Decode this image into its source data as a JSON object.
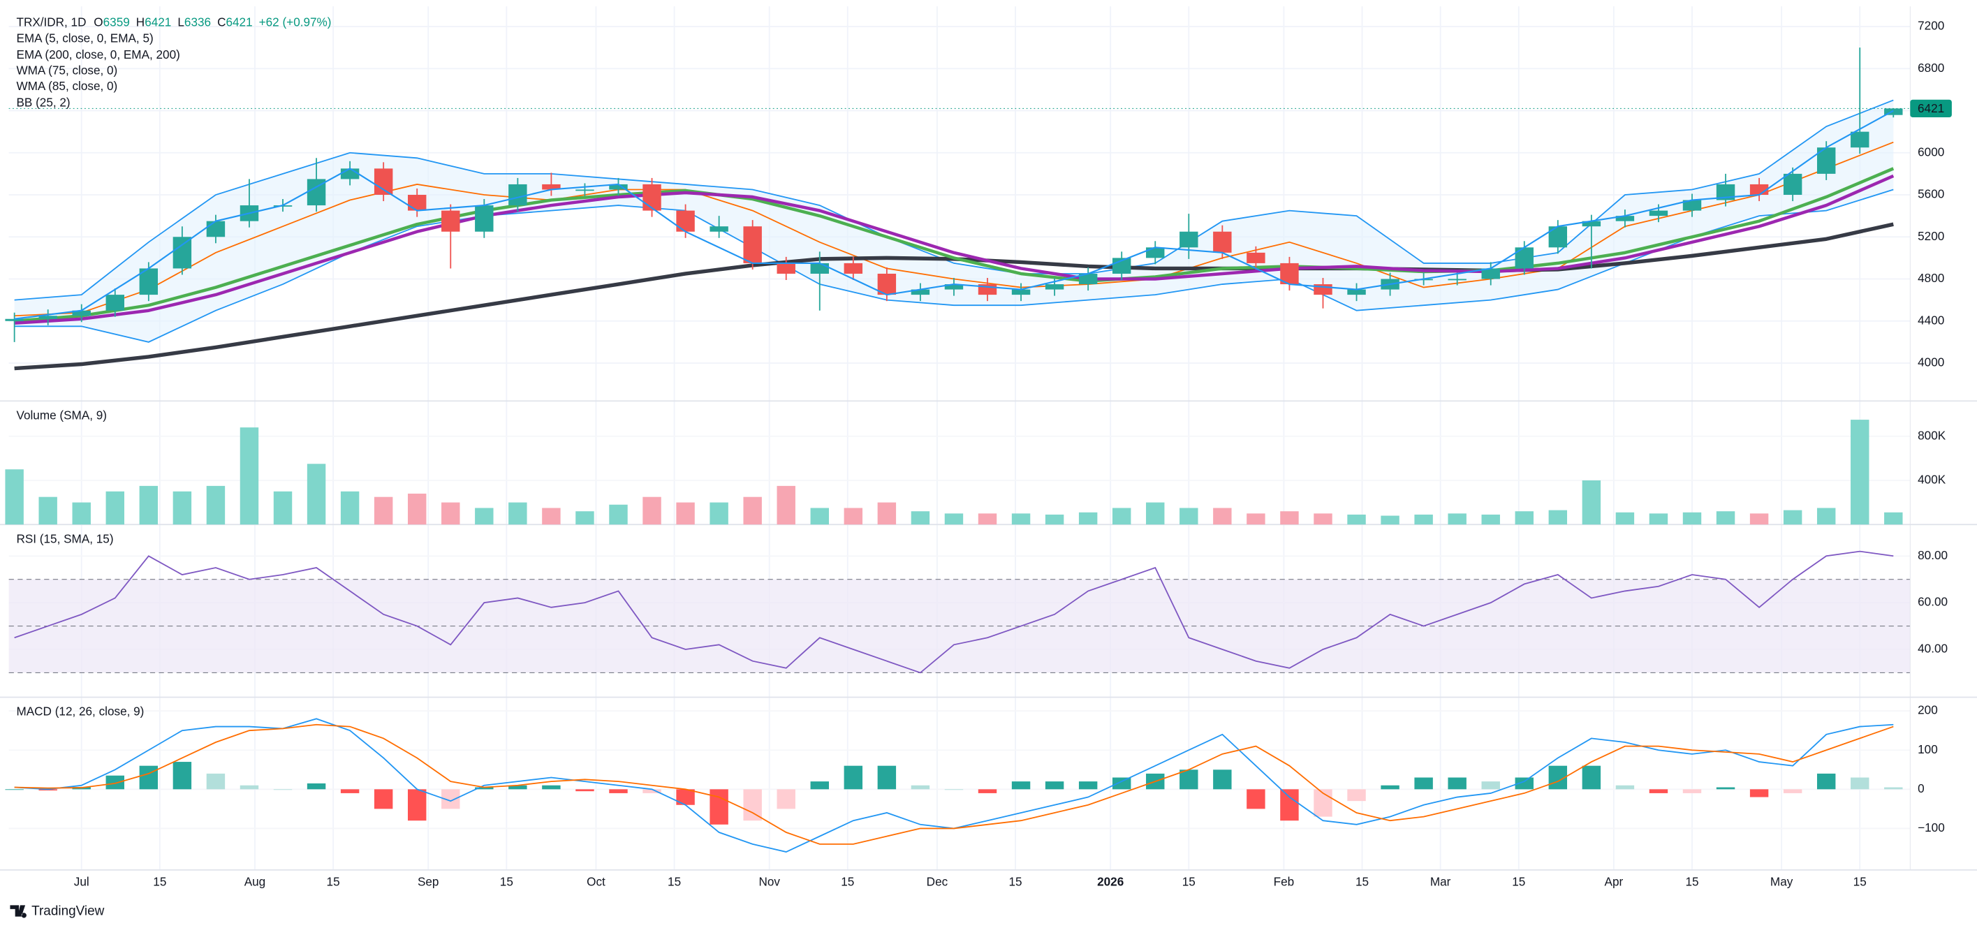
{
  "branding": "TradingView",
  "chart_data": [
    {
      "type": "candlestick",
      "title": "TRX/IDR, 1D",
      "ohlc_labels": [
        "O",
        "H",
        "L",
        "C"
      ],
      "change": "+62 (+0.97%)",
      "change_color": "#089981",
      "up_color": "#26a69a",
      "down_color": "#ef5350",
      "grid": true,
      "xlim": [
        -13,
        327
      ],
      "ylim": [
        3640,
        7392
      ],
      "yticks": [
        4000,
        4400,
        4800,
        5200,
        5600,
        6000,
        6400,
        6800,
        7200
      ],
      "x": [
        -12,
        -6,
        0,
        6,
        12,
        18,
        24,
        30,
        36,
        42,
        48,
        54,
        60,
        66,
        72,
        78,
        84,
        90,
        96,
        102,
        108,
        114,
        120,
        126,
        132,
        138,
        144,
        150,
        156,
        162,
        168,
        174,
        180,
        186,
        192,
        198,
        204,
        210,
        216,
        222,
        228,
        234,
        240,
        246,
        252,
        258,
        264,
        270,
        276,
        282,
        288,
        294,
        300,
        306,
        312,
        318,
        324
      ],
      "open": [
        4400,
        4420,
        4450,
        4500,
        4650,
        4900,
        5200,
        5350,
        5500,
        5500,
        5750,
        5850,
        5600,
        5450,
        5250,
        5500,
        5700,
        5650,
        5650,
        5700,
        5450,
        5250,
        5300,
        4950,
        4850,
        4950,
        4850,
        4650,
        4700,
        4750,
        4650,
        4700,
        4750,
        4850,
        5000,
        5100,
        5250,
        5050,
        4950,
        4750,
        4650,
        4700,
        4800,
        4800,
        4800,
        4900,
        5100,
        5300,
        5350,
        5400,
        5450,
        5550,
        5700,
        5600,
        5800,
        6050,
        6359
      ],
      "high": [
        4480,
        4510,
        4560,
        4710,
        4960,
        5300,
        5410,
        5750,
        5560,
        5950,
        5920,
        5910,
        5660,
        5510,
        5560,
        5760,
        5810,
        5710,
        5760,
        5760,
        5510,
        5400,
        5360,
        5010,
        5060,
        5010,
        4910,
        4760,
        4810,
        4810,
        4760,
        4810,
        4910,
        5060,
        5160,
        5420,
        5310,
        5110,
        5010,
        4810,
        4760,
        4860,
        4860,
        4860,
        4960,
        5160,
        5360,
        5410,
        5460,
        5510,
        5610,
        5800,
        5760,
        5860,
        6110,
        7000,
        6421
      ],
      "low": [
        4200,
        4360,
        4390,
        4440,
        4590,
        4840,
        5140,
        5290,
        5440,
        5440,
        5690,
        5540,
        5390,
        4900,
        5190,
        5440,
        5590,
        5590,
        5590,
        5390,
        5190,
        5190,
        4890,
        4790,
        4500,
        4790,
        4590,
        4590,
        4640,
        4590,
        4590,
        4640,
        4690,
        4790,
        4940,
        4990,
        4990,
        4890,
        4690,
        4520,
        4590,
        4640,
        4740,
        4740,
        4740,
        4840,
        5040,
        4900,
        5290,
        5340,
        5390,
        5490,
        5540,
        5540,
        5740,
        5990,
        6336
      ],
      "close": [
        4420,
        4450,
        4500,
        4650,
        4900,
        5200,
        5350,
        5500,
        5500,
        5750,
        5850,
        5600,
        5450,
        5250,
        5500,
        5700,
        5650,
        5650,
        5700,
        5450,
        5250,
        5300,
        4950,
        4850,
        4950,
        4850,
        4650,
        4700,
        4750,
        4650,
        4700,
        4750,
        4850,
        5000,
        5100,
        5250,
        5050,
        4950,
        4750,
        4650,
        4700,
        4800,
        4800,
        4800,
        4900,
        5100,
        5300,
        5350,
        5400,
        5450,
        5550,
        5700,
        5600,
        5800,
        6050,
        6200,
        6421
      ],
      "overlays": {
        "x": [
          -12,
          0,
          12,
          24,
          36,
          48,
          60,
          72,
          84,
          96,
          108,
          120,
          132,
          144,
          156,
          168,
          180,
          192,
          204,
          216,
          228,
          240,
          252,
          264,
          276,
          288,
          300,
          312,
          324
        ],
        "series": [
          {
            "name": "EMA (5, close, 0, EMA, 5)",
            "color": "#2196f3",
            "width": 1.2,
            "values": [
              4420,
              4500,
              4900,
              5350,
              5500,
              5850,
              5450,
              5500,
              5650,
              5700,
              5250,
              4950,
              4950,
              4650,
              4750,
              4700,
              4850,
              5100,
              5050,
              4750,
              4700,
              4800,
              4900,
              5300,
              5400,
              5550,
              5600,
              6050,
              6400
            ]
          },
          {
            "name": "EMA (200, close, 0, EMA, 200)",
            "color": "#363a45",
            "width": 3,
            "values": [
              3950,
              3990,
              4060,
              4150,
              4250,
              4350,
              4450,
              4550,
              4650,
              4750,
              4850,
              4930,
              4990,
              5000,
              4990,
              4960,
              4920,
              4900,
              4900,
              4900,
              4900,
              4890,
              4880,
              4890,
              4950,
              5020,
              5100,
              5180,
              5320
            ]
          },
          {
            "name": "WMA (75, close, 0)",
            "color": "#9c27b0",
            "width": 2.5,
            "values": [
              4380,
              4420,
              4500,
              4650,
              4850,
              5050,
              5250,
              5400,
              5500,
              5580,
              5620,
              5580,
              5450,
              5250,
              5050,
              4900,
              4800,
              4800,
              4850,
              4900,
              4920,
              4880,
              4870,
              4900,
              5000,
              5150,
              5300,
              5500,
              5780
            ]
          },
          {
            "name": "WMA (85, close, 0)",
            "color": "#4caf50",
            "width": 2.5,
            "values": [
              4400,
              4450,
              4550,
              4720,
              4920,
              5120,
              5320,
              5450,
              5550,
              5600,
              5640,
              5560,
              5400,
              5200,
              5000,
              4850,
              4780,
              4820,
              4900,
              4920,
              4900,
              4870,
              4880,
              4950,
              5050,
              5200,
              5350,
              5580,
              5850
            ]
          }
        ],
        "bb": {
          "name": "BB (25, 2)",
          "color": "#2196f3",
          "fill": "#e3f2fd",
          "basis_color": "#ff6d00",
          "basis": [
            4450,
            4480,
            4700,
            5050,
            5300,
            5550,
            5700,
            5600,
            5550,
            5650,
            5650,
            5450,
            5150,
            4900,
            4800,
            4720,
            4750,
            4800,
            5000,
            5150,
            4950,
            4720,
            4800,
            4900,
            5300,
            5450,
            5600,
            5850,
            6100
          ],
          "upper": [
            4600,
            4650,
            5150,
            5600,
            5800,
            6000,
            5950,
            5800,
            5800,
            5750,
            5700,
            5650,
            5500,
            5200,
            4950,
            4850,
            4850,
            4950,
            5350,
            5450,
            5400,
            4950,
            4950,
            5050,
            5600,
            5650,
            5800,
            6250,
            6500
          ],
          "lower": [
            4350,
            4350,
            4200,
            4500,
            4750,
            5050,
            5300,
            5400,
            5450,
            5500,
            5450,
            5100,
            4750,
            4600,
            4550,
            4550,
            4600,
            4650,
            4750,
            4800,
            4500,
            4550,
            4600,
            4700,
            4950,
            5200,
            5400,
            5450,
            5650
          ]
        }
      }
    },
    {
      "type": "bar",
      "title": "Volume (SMA, 9)",
      "up_color": "#7fd6cb",
      "down_color": "#f7a6b2",
      "xlim": [
        -13,
        327
      ],
      "ylim": [
        0,
        1120000
      ],
      "yticks": [
        {
          "value": 400000,
          "label": "400K"
        },
        {
          "value": 800000,
          "label": "800K"
        }
      ],
      "x": [
        -12,
        -6,
        0,
        6,
        12,
        18,
        24,
        30,
        36,
        42,
        48,
        54,
        60,
        66,
        72,
        78,
        84,
        90,
        96,
        102,
        108,
        114,
        120,
        126,
        132,
        138,
        144,
        150,
        156,
        162,
        168,
        174,
        180,
        186,
        192,
        198,
        204,
        210,
        216,
        222,
        228,
        234,
        240,
        246,
        252,
        258,
        264,
        270,
        276,
        282,
        288,
        294,
        300,
        306,
        312,
        318,
        324
      ],
      "values": [
        500000,
        250000,
        200000,
        300000,
        350000,
        300000,
        350000,
        880000,
        300000,
        550000,
        300000,
        250000,
        280000,
        200000,
        150000,
        200000,
        150000,
        120000,
        180000,
        250000,
        200000,
        200000,
        250000,
        350000,
        150000,
        150000,
        200000,
        120000,
        100000,
        100000,
        100000,
        90000,
        110000,
        150000,
        200000,
        150000,
        150000,
        100000,
        120000,
        100000,
        90000,
        80000,
        90000,
        100000,
        90000,
        120000,
        130000,
        400000,
        110000,
        100000,
        110000,
        120000,
        100000,
        130000,
        150000,
        950000,
        110000
      ]
    },
    {
      "type": "line",
      "title": "RSI (15, SMA, 15)",
      "color": "#7e57c2",
      "band_fill": "#ede7f6",
      "bands": [
        30,
        50,
        70
      ],
      "xlim": [
        -13,
        327
      ],
      "ylim": [
        19.5,
        93.5
      ],
      "yticks": [
        {
          "value": 40,
          "label": "40.00"
        },
        {
          "value": 60,
          "label": "60.00"
        },
        {
          "value": 80,
          "label": "80.00"
        }
      ],
      "x": [
        -12,
        -6,
        0,
        6,
        12,
        18,
        24,
        30,
        36,
        42,
        48,
        54,
        60,
        66,
        72,
        78,
        84,
        90,
        96,
        102,
        108,
        114,
        120,
        126,
        132,
        138,
        144,
        150,
        156,
        162,
        168,
        174,
        180,
        186,
        192,
        198,
        204,
        210,
        216,
        222,
        228,
        234,
        240,
        246,
        252,
        258,
        264,
        270,
        276,
        282,
        288,
        294,
        300,
        306,
        312,
        318,
        324
      ],
      "values": [
        45,
        50,
        55,
        62,
        80,
        72,
        75,
        70,
        72,
        75,
        65,
        55,
        50,
        42,
        60,
        62,
        58,
        60,
        65,
        45,
        40,
        42,
        35,
        32,
        45,
        40,
        35,
        30,
        42,
        45,
        50,
        55,
        65,
        70,
        75,
        45,
        40,
        35,
        32,
        40,
        45,
        55,
        50,
        55,
        60,
        68,
        72,
        62,
        65,
        67,
        72,
        70,
        58,
        70,
        80,
        82,
        80
      ]
    },
    {
      "type": "macd",
      "title": "MACD (12, 26, close, 9)",
      "xlim": [
        -13,
        327
      ],
      "ylim": [
        -206,
        235
      ],
      "yticks": [
        {
          "value": -100,
          "label": "−100"
        },
        0,
        100,
        200
      ],
      "xticks": [
        {
          "value": 0,
          "label": "Jul"
        },
        {
          "value": 14,
          "label": "15"
        },
        {
          "value": 31,
          "label": "Aug"
        },
        {
          "value": 45,
          "label": "15"
        },
        {
          "value": 62,
          "label": "Sep"
        },
        {
          "value": 76,
          "label": "15"
        },
        {
          "value": 92,
          "label": "Oct"
        },
        {
          "value": 106,
          "label": "15"
        },
        {
          "value": 123,
          "label": "Nov"
        },
        {
          "value": 137,
          "label": "15"
        },
        {
          "value": 153,
          "label": "Dec"
        },
        {
          "value": 167,
          "label": "15"
        },
        {
          "value": 184,
          "label": "2026"
        },
        {
          "value": 198,
          "label": "15"
        },
        {
          "value": 215,
          "label": "Feb"
        },
        {
          "value": 229,
          "label": "15"
        },
        {
          "value": 243,
          "label": "Mar"
        },
        {
          "value": 257,
          "label": "15"
        },
        {
          "value": 274,
          "label": "Apr"
        },
        {
          "value": 288,
          "label": "15"
        },
        {
          "value": 304,
          "label": "May"
        },
        {
          "value": 318,
          "label": "15"
        }
      ],
      "x": [
        -12,
        -6,
        0,
        6,
        12,
        18,
        24,
        30,
        36,
        42,
        48,
        54,
        60,
        66,
        72,
        78,
        84,
        90,
        96,
        102,
        108,
        114,
        120,
        126,
        132,
        138,
        144,
        150,
        156,
        162,
        168,
        174,
        180,
        186,
        192,
        198,
        204,
        210,
        216,
        222,
        228,
        234,
        240,
        246,
        252,
        258,
        264,
        270,
        276,
        282,
        288,
        294,
        300,
        306,
        312,
        318,
        324
      ],
      "macd": {
        "color": "#2196f3",
        "values": [
          5,
          0,
          10,
          50,
          100,
          150,
          160,
          160,
          155,
          180,
          150,
          80,
          0,
          -30,
          10,
          20,
          30,
          20,
          10,
          0,
          -40,
          -110,
          -140,
          -160,
          -120,
          -80,
          -60,
          -90,
          -100,
          -80,
          -60,
          -40,
          -20,
          20,
          60,
          100,
          140,
          60,
          -20,
          -80,
          -90,
          -70,
          -40,
          -20,
          -10,
          20,
          80,
          130,
          120,
          100,
          90,
          100,
          70,
          60,
          140,
          160,
          165
        ]
      },
      "signal": {
        "color": "#ff6d00",
        "values": [
          5,
          3,
          4,
          15,
          40,
          80,
          120,
          150,
          155,
          165,
          160,
          130,
          80,
          20,
          5,
          10,
          20,
          25,
          20,
          10,
          0,
          -20,
          -60,
          -110,
          -140,
          -140,
          -120,
          -100,
          -100,
          -90,
          -80,
          -60,
          -40,
          -10,
          20,
          50,
          90,
          110,
          60,
          -10,
          -60,
          -80,
          -70,
          -50,
          -30,
          -10,
          20,
          70,
          110,
          110,
          100,
          95,
          90,
          70,
          100,
          130,
          160
        ]
      },
      "histogram": {
        "colors": [
          "#26a69a",
          "#b2dfdb",
          "#ff5252",
          "#ffcdd2"
        ],
        "values": [
          0,
          -3,
          6,
          35,
          60,
          70,
          40,
          10,
          0,
          15,
          -10,
          -50,
          -80,
          -50,
          5,
          10,
          10,
          -5,
          -10,
          -10,
          -40,
          -90,
          -80,
          -50,
          20,
          60,
          60,
          10,
          0,
          -10,
          20,
          20,
          20,
          30,
          40,
          50,
          50,
          -50,
          -80,
          -70,
          -30,
          10,
          30,
          30,
          20,
          30,
          60,
          60,
          10,
          -10,
          -10,
          5,
          -20,
          -10,
          40,
          30,
          5
        ]
      }
    }
  ]
}
